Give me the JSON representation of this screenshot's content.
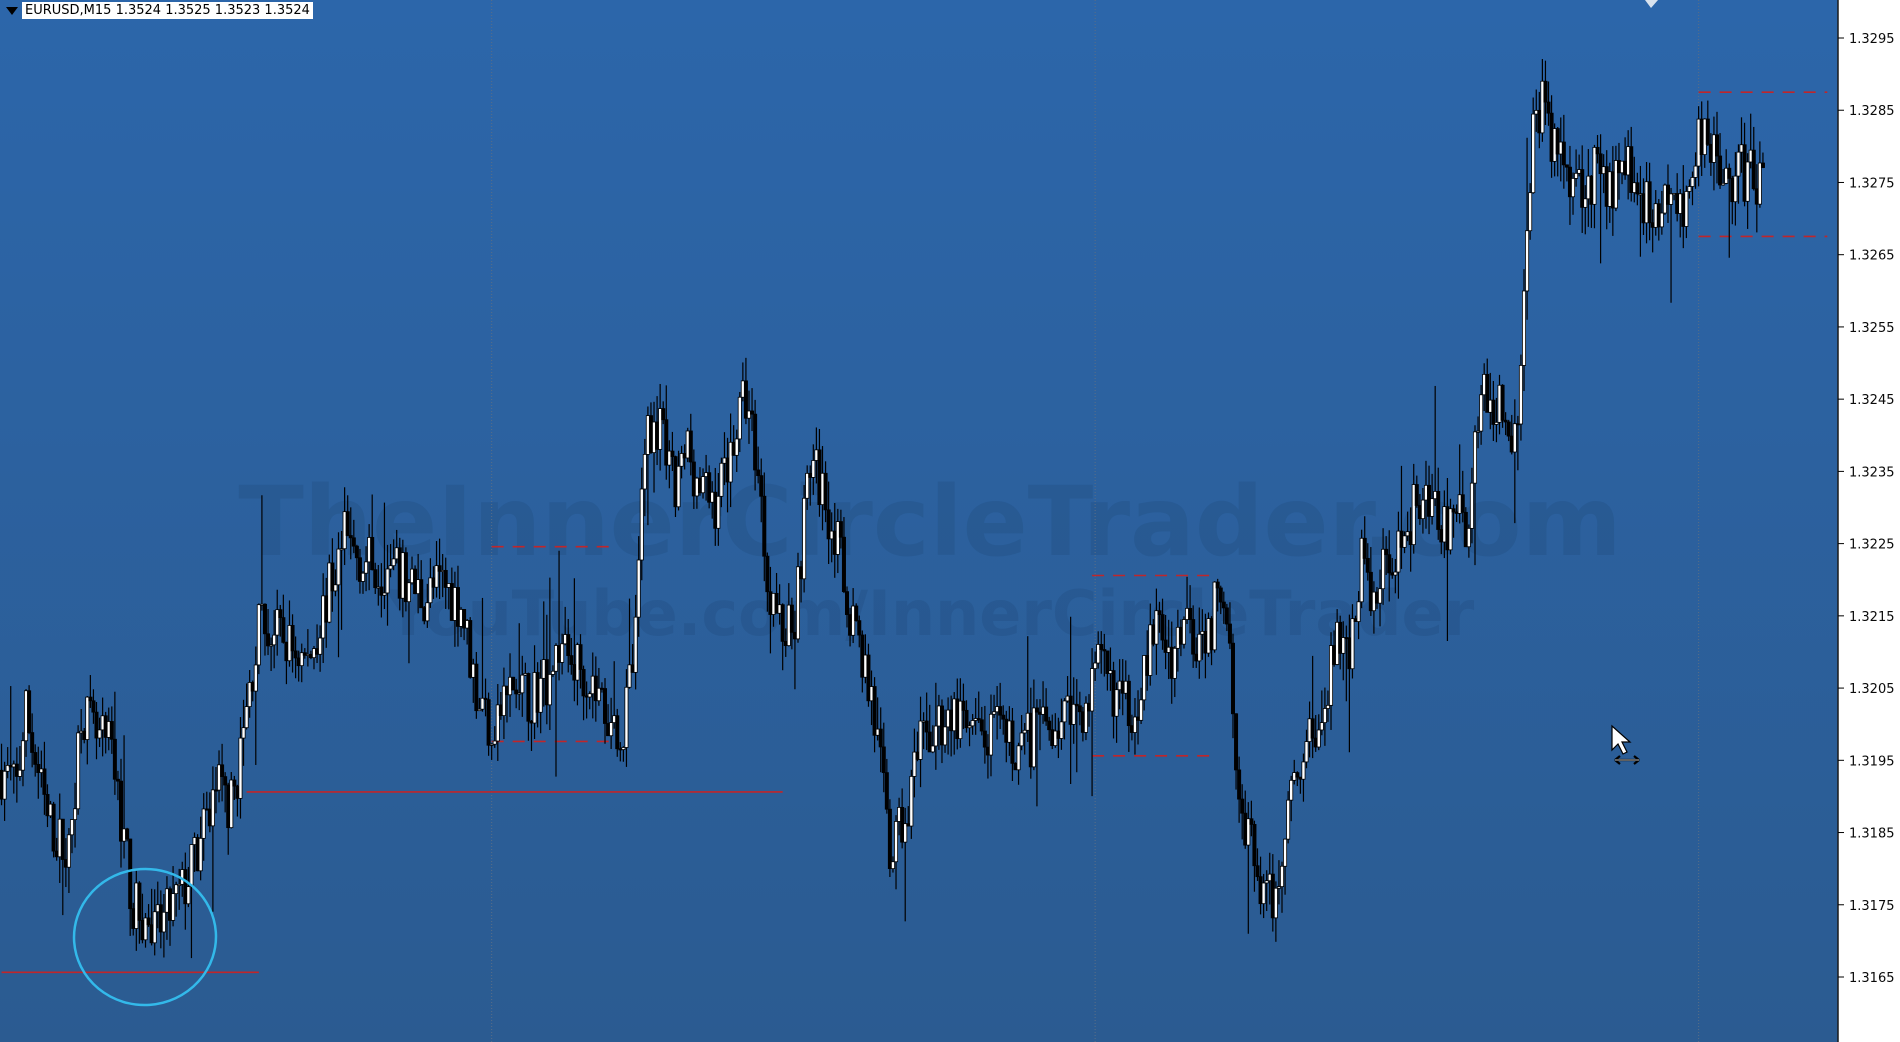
{
  "header": {
    "symbol_label": "EURUSD,M15",
    "ohlc_label": " 1.3524 1.3525 1.3523 1.3524"
  },
  "watermark": {
    "line1": "TheInnerCircleTrader.com",
    "line2": "YouTube.com/InnerCircleTrader"
  },
  "colors": {
    "background_top": "#2c65a8",
    "background_bottom": "#2c5c93",
    "axis_bg": "#ffffff",
    "candle_up": "#ffffff",
    "candle_down": "#000000",
    "level_line": "#c0262a",
    "circle": "#37b8e8",
    "separator": "#5a6e86"
  },
  "chart_data": {
    "type": "candlestick",
    "symbol": "EURUSD",
    "timeframe": "M15",
    "ylim": [
      1.3159,
      1.3299
    ],
    "y_ticks": [
      "1.3295",
      "1.3285",
      "1.3275",
      "1.3265",
      "1.3255",
      "1.3245",
      "1.3235",
      "1.3225",
      "1.3215",
      "1.3205",
      "1.3195",
      "1.3185",
      "1.3175",
      "1.3165"
    ],
    "anchors": [
      [
        0,
        1.3195
      ],
      [
        5,
        1.3193
      ],
      [
        8,
        1.3203
      ],
      [
        15,
        1.3188
      ],
      [
        22,
        1.3183
      ],
      [
        26,
        1.3204
      ],
      [
        31,
        1.3199
      ],
      [
        36,
        1.3198
      ],
      [
        43,
        1.3176
      ],
      [
        50,
        1.3172
      ],
      [
        56,
        1.3176
      ],
      [
        60,
        1.3179
      ],
      [
        66,
        1.3186
      ],
      [
        70,
        1.3193
      ],
      [
        75,
        1.319
      ],
      [
        78,
        1.3197
      ],
      [
        84,
        1.3215
      ],
      [
        92,
        1.3213
      ],
      [
        100,
        1.321
      ],
      [
        107,
        1.322
      ],
      [
        112,
        1.3227
      ],
      [
        118,
        1.3224
      ],
      [
        125,
        1.3223
      ],
      [
        132,
        1.3221
      ],
      [
        138,
        1.3219
      ],
      [
        144,
        1.3221
      ],
      [
        150,
        1.3218
      ],
      [
        155,
        1.3206
      ],
      [
        160,
        1.3201
      ],
      [
        166,
        1.3206
      ],
      [
        172,
        1.3205
      ],
      [
        178,
        1.3208
      ],
      [
        182,
        1.3212
      ],
      [
        190,
        1.3209
      ],
      [
        198,
        1.3203
      ],
      [
        203,
        1.32
      ],
      [
        207,
        1.3213
      ],
      [
        210,
        1.3242
      ],
      [
        214,
        1.3243
      ],
      [
        220,
        1.3233
      ],
      [
        224,
        1.324
      ],
      [
        228,
        1.3234
      ],
      [
        233,
        1.3232
      ],
      [
        238,
        1.324
      ],
      [
        243,
        1.3247
      ],
      [
        247,
        1.3237
      ],
      [
        250,
        1.3222
      ],
      [
        255,
        1.3214
      ],
      [
        259,
        1.3217
      ],
      [
        264,
        1.3238
      ],
      [
        268,
        1.3234
      ],
      [
        272,
        1.3228
      ],
      [
        276,
        1.3219
      ],
      [
        280,
        1.3213
      ],
      [
        284,
        1.3205
      ],
      [
        287,
        1.3195
      ],
      [
        290,
        1.3183
      ],
      [
        294,
        1.3187
      ],
      [
        300,
        1.3198
      ],
      [
        305,
        1.3201
      ],
      [
        310,
        1.3203
      ],
      [
        315,
        1.32
      ],
      [
        320,
        1.3199
      ],
      [
        325,
        1.32
      ],
      [
        330,
        1.3198
      ],
      [
        335,
        1.3199
      ],
      [
        340,
        1.3201
      ],
      [
        345,
        1.3202
      ],
      [
        350,
        1.3203
      ],
      [
        355,
        1.3205
      ],
      [
        358,
        1.3209
      ],
      [
        362,
        1.3207
      ],
      [
        366,
        1.3204
      ],
      [
        370,
        1.3204
      ],
      [
        374,
        1.3211
      ],
      [
        378,
        1.3215
      ],
      [
        382,
        1.3211
      ],
      [
        386,
        1.3216
      ],
      [
        390,
        1.3214
      ],
      [
        395,
        1.3215
      ],
      [
        398,
        1.3222
      ],
      [
        401,
        1.3215
      ],
      [
        404,
        1.319
      ],
      [
        408,
        1.3184
      ],
      [
        413,
        1.3176
      ],
      [
        416,
        1.3178
      ],
      [
        420,
        1.3191
      ],
      [
        424,
        1.3197
      ],
      [
        428,
        1.32
      ],
      [
        432,
        1.3203
      ],
      [
        436,
        1.3214
      ],
      [
        440,
        1.3211
      ],
      [
        444,
        1.3225
      ],
      [
        448,
        1.3218
      ],
      [
        453,
        1.3225
      ],
      [
        458,
        1.3228
      ],
      [
        462,
        1.3232
      ],
      [
        466,
        1.3233
      ],
      [
        470,
        1.3228
      ],
      [
        475,
        1.323
      ],
      [
        479,
        1.3229
      ],
      [
        482,
        1.3245
      ],
      [
        484,
        1.325
      ],
      [
        487,
        1.3244
      ],
      [
        490,
        1.3245
      ],
      [
        493,
        1.3241
      ],
      [
        495,
        1.3244
      ],
      [
        497,
        1.3265
      ],
      [
        500,
        1.3284
      ],
      [
        503,
        1.3288
      ],
      [
        506,
        1.3282
      ],
      [
        510,
        1.328
      ],
      [
        514,
        1.3277
      ],
      [
        518,
        1.3277
      ],
      [
        522,
        1.3278
      ],
      [
        526,
        1.3276
      ],
      [
        530,
        1.3281
      ],
      [
        534,
        1.3276
      ],
      [
        538,
        1.3272
      ],
      [
        542,
        1.3272
      ],
      [
        546,
        1.3274
      ],
      [
        550,
        1.3273
      ],
      [
        553,
        1.3282
      ],
      [
        556,
        1.3285
      ],
      [
        560,
        1.3281
      ],
      [
        564,
        1.3276
      ],
      [
        568,
        1.3278
      ],
      [
        572,
        1.3277
      ],
      [
        575,
        1.3278
      ]
    ],
    "levels": [
      {
        "price": 1.3167,
        "from": 0,
        "to": 84,
        "style": "solid"
      },
      {
        "price": 1.3192,
        "from": 80,
        "to": 255,
        "style": "solid"
      },
      {
        "price": 1.3226,
        "from": 160,
        "to": 200,
        "style": "dashed"
      },
      {
        "price": 1.3199,
        "from": 160,
        "to": 200,
        "style": "dashed"
      },
      {
        "price": 1.3222,
        "from": 356,
        "to": 397,
        "style": "dashed"
      },
      {
        "price": 1.3197,
        "from": 356,
        "to": 397,
        "style": "dashed"
      },
      {
        "price": 1.3289,
        "from": 554,
        "to": 596,
        "style": "dashed"
      },
      {
        "price": 1.3269,
        "from": 554,
        "to": 596,
        "style": "dashed"
      }
    ],
    "session_separators": [
      160,
      357,
      554
    ],
    "annotation": "circle-around-low"
  }
}
